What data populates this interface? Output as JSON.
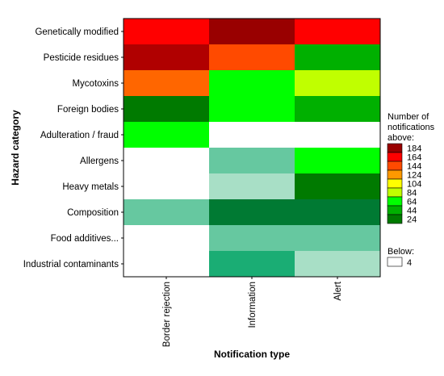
{
  "chart_data": {
    "type": "heatmap",
    "xlabel": "Notification type",
    "ylabel": "Hazard category",
    "x_categories": [
      "Border rejection",
      "Information",
      "Alert"
    ],
    "y_categories": [
      "Genetically modified",
      "Pesticide residues",
      "Mycotoxins",
      "Foreign bodies",
      "Adulteration / fraud",
      "Allergens",
      "Heavy metals",
      "Composition",
      "Food additives...",
      "Industrial contaminants"
    ],
    "bins": [
      {
        "label": "184",
        "color": "#990000"
      },
      {
        "label": "164",
        "color": "#ff0000"
      },
      {
        "label": "144",
        "color": "#ff4a00"
      },
      {
        "label": "124",
        "color": "#ff9900"
      },
      {
        "label": "104",
        "color": "#ffff00"
      },
      {
        "label": "84",
        "color": "#c0ff00"
      },
      {
        "label": "64",
        "color": "#00ff00"
      },
      {
        "label": "44",
        "color": "#00b000"
      },
      {
        "label": "24",
        "color": "#007a00"
      }
    ],
    "below_label": "Below:",
    "below_value": "4",
    "below_color": "#ffffff",
    "legend_title": [
      "Number of",
      "notifications",
      "above:"
    ],
    "cells": [
      {
        "row": 0,
        "segments": [
          {
            "x0": 0,
            "x1": 1,
            "color": "#ff0000"
          },
          {
            "x0": 1,
            "x1": 2,
            "color": "#990000"
          },
          {
            "x0": 2,
            "x1": 3,
            "color": "#ff0000"
          }
        ]
      },
      {
        "row": 1,
        "segments": [
          {
            "x0": 0,
            "x1": 1,
            "color": "#b00000"
          },
          {
            "x0": 1,
            "x1": 2,
            "color": "#ff4a00"
          },
          {
            "x0": 2,
            "x1": 3,
            "color": "#00b000"
          }
        ]
      },
      {
        "row": 2,
        "segments": [
          {
            "x0": 0,
            "x1": 1,
            "color": "#ff6600"
          },
          {
            "x0": 1,
            "x1": 2,
            "color": "#00ff00"
          },
          {
            "x0": 2,
            "x1": 3,
            "color": "#c0ff00"
          }
        ]
      },
      {
        "row": 3,
        "segments": [
          {
            "x0": 0,
            "x1": 1,
            "color": "#007a00"
          },
          {
            "x0": 1,
            "x1": 2,
            "color": "#00ff00"
          },
          {
            "x0": 2,
            "x1": 3,
            "color": "#00b000"
          }
        ]
      },
      {
        "row": 4,
        "segments": [
          {
            "x0": 0,
            "x1": 1,
            "color": "#00ff00"
          },
          {
            "x0": 1,
            "x1": 2,
            "color": "#ffffff"
          },
          {
            "x0": 2,
            "x1": 3,
            "color": "#ffffff"
          }
        ]
      },
      {
        "row": 5,
        "segments": [
          {
            "x0": 0,
            "x1": 1,
            "color": "#ffffff"
          },
          {
            "x0": 1,
            "x1": 2,
            "color": "#66c8a0"
          },
          {
            "x0": 2,
            "x1": 3,
            "color": "#00ff00"
          }
        ]
      },
      {
        "row": 6,
        "segments": [
          {
            "x0": 0,
            "x1": 1,
            "color": "#ffffff"
          },
          {
            "x0": 1,
            "x1": 2,
            "color": "#a8dfc6"
          },
          {
            "x0": 2,
            "x1": 3,
            "color": "#007a00"
          }
        ]
      },
      {
        "row": 7,
        "segments": [
          {
            "x0": 0,
            "x1": 1,
            "color": "#66c8a0"
          },
          {
            "x0": 1,
            "x1": 2,
            "color": "#007a33"
          },
          {
            "x0": 2,
            "x1": 3,
            "color": "#007a33"
          }
        ]
      },
      {
        "row": 8,
        "segments": [
          {
            "x0": 0,
            "x1": 1,
            "color": "#ffffff"
          },
          {
            "x0": 1,
            "x1": 2,
            "color": "#66c8a0"
          },
          {
            "x0": 2,
            "x1": 3,
            "color": "#66c8a0"
          }
        ]
      },
      {
        "row": 9,
        "segments": [
          {
            "x0": 0,
            "x1": 1,
            "color": "#ffffff"
          },
          {
            "x0": 1,
            "x1": 2,
            "color": "#1aad74"
          },
          {
            "x0": 2,
            "x1": 3,
            "color": "#a8dfc6"
          }
        ]
      }
    ]
  }
}
